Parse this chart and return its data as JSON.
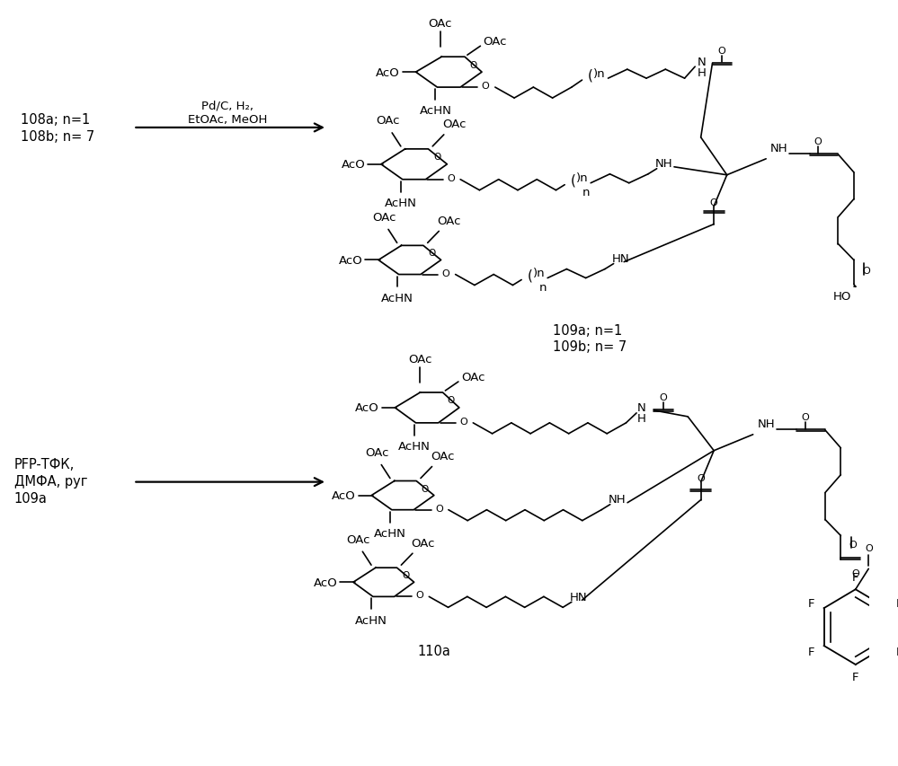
{
  "bg": "#ffffff",
  "reaction1_reactant": "108a; n=1\n108b; n= 7",
  "reaction1_reagent1": "Pd/C, H₂,",
  "reaction1_reagent2": "EtOAc, MeOH",
  "reaction1_product": "109a; n=1\n109b; n= 7",
  "reaction2_reagent1": "PFP-ТФК,",
  "reaction2_reagent2": "ДМФА, руг",
  "reaction2_reagent3": "109a",
  "reaction2_product": "110a",
  "fontsize_label": 10.5,
  "fontsize_group": 9.5,
  "fontsize_O": 8.5
}
